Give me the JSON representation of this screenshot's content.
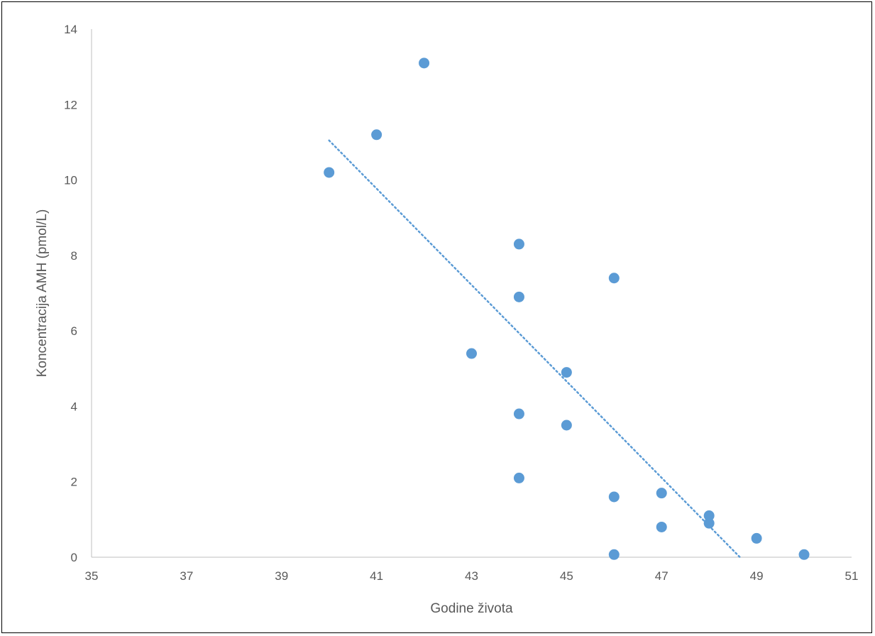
{
  "chart_data": {
    "type": "scatter",
    "title": "",
    "xlabel": "Godine života",
    "ylabel": "Koncentracija AMH (pmol/L)",
    "xlim": [
      35,
      51
    ],
    "ylim": [
      0,
      14
    ],
    "xticks": [
      35,
      37,
      39,
      41,
      43,
      45,
      47,
      49,
      51
    ],
    "yticks": [
      0,
      2,
      4,
      6,
      8,
      10,
      12,
      14
    ],
    "grid": false,
    "legend": "none",
    "series": [
      {
        "color": "#5b9bd5",
        "points": [
          {
            "x": 40,
            "y": 10.2
          },
          {
            "x": 41,
            "y": 11.2
          },
          {
            "x": 42,
            "y": 13.1
          },
          {
            "x": 43,
            "y": 5.4
          },
          {
            "x": 44,
            "y": 8.3
          },
          {
            "x": 44,
            "y": 6.9
          },
          {
            "x": 44,
            "y": 3.8
          },
          {
            "x": 44,
            "y": 2.1
          },
          {
            "x": 45,
            "y": 4.9
          },
          {
            "x": 45,
            "y": 3.5
          },
          {
            "x": 46,
            "y": 7.4
          },
          {
            "x": 46,
            "y": 1.6
          },
          {
            "x": 46,
            "y": 0.07
          },
          {
            "x": 47,
            "y": 1.7
          },
          {
            "x": 47,
            "y": 0.8
          },
          {
            "x": 48,
            "y": 1.1
          },
          {
            "x": 48,
            "y": 0.9
          },
          {
            "x": 49,
            "y": 0.5
          },
          {
            "x": 50,
            "y": 0.07
          }
        ]
      }
    ],
    "trendline": {
      "type": "linear",
      "style": "dotted",
      "color": "#5b9bd5",
      "start": {
        "x": 40,
        "y": 11.05
      },
      "end": {
        "x": 48.65,
        "y": 0
      }
    }
  }
}
